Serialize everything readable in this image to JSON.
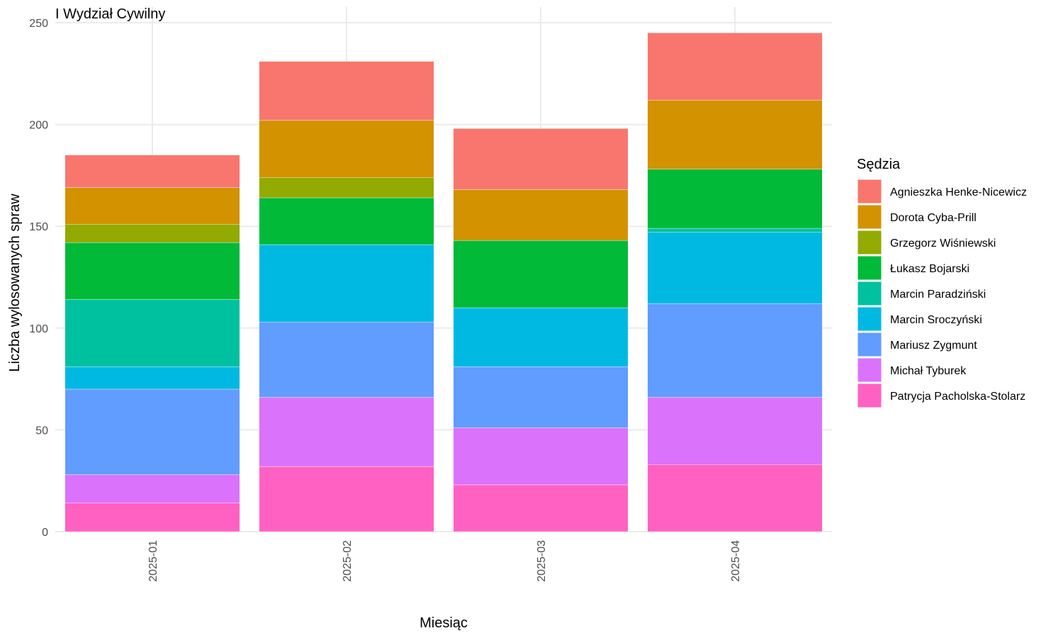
{
  "chart_data": {
    "type": "bar",
    "stacked": true,
    "title": "I Wydział Cywilny",
    "xlabel": "Miesiąc",
    "ylabel": "Liczba wylosowanych spraw",
    "ylim": [
      0,
      250
    ],
    "yticks": [
      0,
      50,
      100,
      150,
      200,
      250
    ],
    "grid": true,
    "legend": {
      "title": "Sędzia",
      "position": "right"
    },
    "categories": [
      "2025-01",
      "2025-02",
      "2025-03",
      "2025-04"
    ],
    "series": [
      {
        "name": "Patrycja Pacholska-Stolarz",
        "color": "#FF61C3",
        "values": [
          14,
          32,
          23,
          33
        ]
      },
      {
        "name": "Michał Tyburek",
        "color": "#DB72FB",
        "values": [
          14,
          34,
          28,
          33
        ]
      },
      {
        "name": "Mariusz Zygmunt",
        "color": "#619CFF",
        "values": [
          42,
          37,
          30,
          46
        ]
      },
      {
        "name": "Marcin Sroczyński",
        "color": "#00B9E3",
        "values": [
          11,
          38,
          29,
          35
        ]
      },
      {
        "name": "Marcin Paradziński",
        "color": "#00C19F",
        "values": [
          33,
          0,
          0,
          2
        ]
      },
      {
        "name": "Łukasz Bojarski",
        "color": "#00BA38",
        "values": [
          28,
          23,
          33,
          29
        ]
      },
      {
        "name": "Grzegorz Wiśniewski",
        "color": "#93AA00",
        "values": [
          9,
          10,
          0,
          0
        ]
      },
      {
        "name": "Dorota Cyba-Prill",
        "color": "#D39200",
        "values": [
          18,
          28,
          25,
          34
        ]
      },
      {
        "name": "Agnieszka Henke-Nicewicz",
        "color": "#F8766D",
        "values": [
          16,
          29,
          30,
          33
        ]
      }
    ],
    "legend_order": [
      "Agnieszka Henke-Nicewicz",
      "Dorota Cyba-Prill",
      "Grzegorz Wiśniewski",
      "Łukasz Bojarski",
      "Marcin Paradziński",
      "Marcin Sroczyński",
      "Mariusz Zygmunt",
      "Michał Tyburek",
      "Patrycja Pacholska-Stolarz"
    ]
  }
}
